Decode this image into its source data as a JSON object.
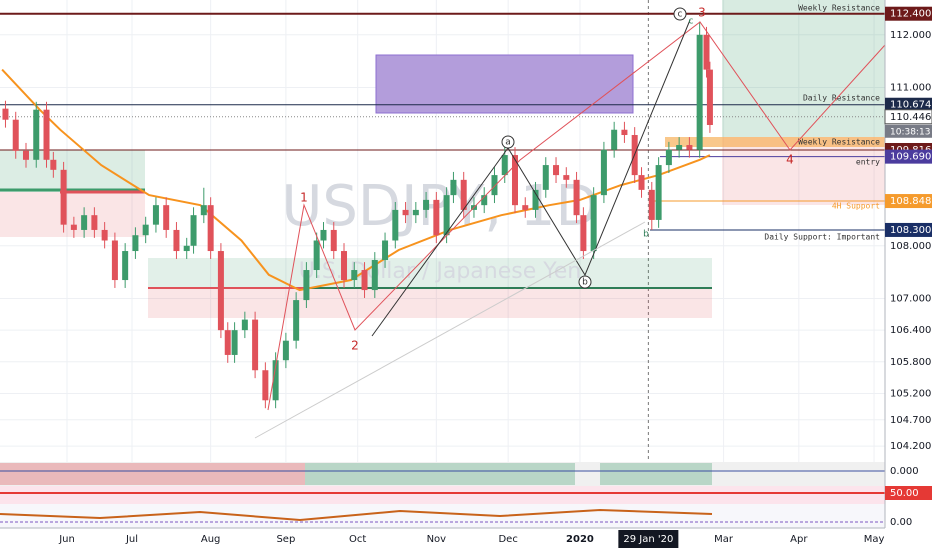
{
  "chart_data": {
    "type": "candlestick",
    "symbol": "USDJPY, 1D",
    "description": "U.S. Dollar / Japanese Yen",
    "x": [
      -18,
      -15,
      -12,
      -9,
      -6,
      -4,
      -1,
      2,
      5,
      8,
      11,
      14,
      17,
      20,
      23,
      26,
      29,
      32,
      35,
      37,
      40,
      42,
      45,
      47,
      49,
      52,
      55,
      58,
      61,
      64,
      67,
      70,
      73,
      75,
      78,
      81,
      84,
      87,
      90,
      93,
      96,
      99,
      102,
      105,
      108,
      111,
      113,
      116,
      119,
      122,
      125,
      128,
      131,
      134,
      137,
      140,
      143,
      146,
      149,
      151,
      154,
      157,
      160,
      163,
      166,
      168,
      171,
      173,
      176,
      179,
      182,
      185,
      187,
      188
    ],
    "open": [
      110.6,
      110.39,
      109.8,
      109.63,
      110.58,
      109.63,
      109.44,
      108.4,
      108.3,
      108.58,
      108.3,
      108.1,
      107.35,
      107.9,
      108.2,
      108.4,
      108.77,
      108.3,
      107.9,
      108.0,
      108.58,
      108.77,
      107.9,
      106.4,
      105.93,
      106.4,
      106.6,
      105.64,
      105.07,
      105.83,
      106.2,
      106.97,
      107.54,
      108.1,
      108.3,
      107.9,
      107.35,
      107.54,
      107.16,
      107.73,
      108.1,
      108.68,
      108.58,
      108.68,
      108.87,
      108.2,
      108.96,
      109.25,
      108.68,
      108.77,
      108.96,
      109.34,
      109.72,
      108.77,
      108.68,
      109.06,
      109.53,
      109.34,
      109.25,
      108.58,
      107.9,
      108.96,
      109.82,
      110.2,
      110.1,
      109.34,
      109.06,
      108.49,
      109.53,
      109.82,
      109.91,
      109.82,
      112.0,
      111.34
    ],
    "high": [
      110.75,
      110.54,
      109.95,
      110.73,
      110.73,
      109.78,
      109.59,
      108.55,
      108.73,
      108.73,
      108.45,
      108.25,
      108.05,
      108.35,
      108.55,
      108.92,
      108.92,
      108.45,
      108.15,
      108.73,
      109.1,
      108.92,
      108.05,
      106.55,
      106.55,
      106.75,
      106.75,
      105.79,
      105.98,
      106.35,
      107.12,
      107.69,
      108.25,
      108.45,
      108.45,
      108.05,
      107.69,
      107.69,
      107.88,
      108.25,
      108.83,
      108.83,
      108.83,
      109.02,
      109.02,
      109.11,
      109.4,
      109.4,
      108.92,
      109.11,
      109.49,
      109.87,
      109.87,
      108.92,
      109.21,
      109.68,
      109.68,
      109.49,
      109.4,
      108.73,
      109.11,
      109.97,
      110.35,
      110.35,
      110.25,
      109.49,
      109.21,
      109.68,
      109.97,
      110.06,
      110.06,
      112.25,
      112.15,
      111.49
    ],
    "low": [
      110.24,
      109.65,
      109.48,
      109.48,
      109.48,
      109.29,
      108.25,
      108.15,
      108.15,
      108.15,
      107.95,
      107.2,
      107.2,
      107.75,
      108.05,
      108.25,
      108.15,
      107.75,
      107.75,
      107.85,
      108.43,
      107.75,
      106.25,
      105.78,
      105.78,
      106.25,
      105.49,
      104.92,
      104.92,
      105.68,
      106.05,
      106.82,
      107.39,
      107.95,
      107.75,
      107.2,
      107.2,
      107.01,
      107.01,
      107.58,
      107.95,
      108.43,
      108.43,
      108.53,
      108.05,
      108.05,
      108.81,
      108.53,
      108.53,
      108.62,
      108.81,
      109.19,
      108.62,
      108.53,
      108.53,
      108.91,
      109.19,
      109.1,
      108.43,
      107.75,
      107.75,
      108.81,
      109.67,
      109.95,
      109.19,
      108.91,
      108.3,
      108.34,
      109.38,
      109.67,
      109.67,
      109.67,
      111.19,
      110.14
    ],
    "close": [
      110.39,
      109.8,
      109.63,
      110.58,
      109.63,
      109.44,
      108.4,
      108.3,
      108.58,
      108.3,
      108.1,
      107.35,
      107.9,
      108.2,
      108.4,
      108.77,
      108.3,
      107.9,
      108.0,
      108.58,
      108.77,
      107.9,
      106.4,
      105.93,
      106.4,
      106.6,
      105.64,
      105.07,
      105.83,
      106.2,
      106.97,
      107.54,
      108.1,
      108.3,
      107.9,
      107.35,
      107.54,
      107.16,
      107.73,
      108.1,
      108.68,
      108.58,
      108.68,
      108.87,
      108.2,
      108.96,
      109.25,
      108.68,
      108.77,
      108.96,
      109.34,
      109.72,
      108.77,
      108.68,
      109.06,
      109.53,
      109.34,
      109.25,
      108.58,
      107.9,
      108.96,
      109.82,
      110.2,
      110.1,
      109.34,
      109.06,
      108.49,
      109.53,
      109.82,
      109.91,
      109.82,
      112.0,
      111.34,
      110.29
    ],
    "up_color": "#3d9b6b",
    "down_color": "#e0525a",
    "xlim": [
      -19.6,
      239.2
    ],
    "ylim": [
      103.9,
      112.66
    ],
    "grid": true,
    "yticks": [
      {
        "value": 112,
        "label": "112.000"
      },
      {
        "value": 111,
        "label": "111.000"
      },
      {
        "value": 108,
        "label": "108.000"
      },
      {
        "value": 107,
        "label": "107.000"
      },
      {
        "value": 106.4,
        "label": "106.400"
      },
      {
        "value": 105.8,
        "label": "105.800"
      },
      {
        "value": 105.2,
        "label": "105.200"
      },
      {
        "value": 104.7,
        "label": "104.700"
      },
      {
        "value": 104.2,
        "label": "104.200"
      }
    ],
    "xticks": [
      {
        "value": 0,
        "label": "Jun"
      },
      {
        "value": 19,
        "label": "Jul"
      },
      {
        "value": 42,
        "label": "Aug"
      },
      {
        "value": 64,
        "label": "Sep"
      },
      {
        "value": 85,
        "label": "Oct"
      },
      {
        "value": 108,
        "label": "Nov"
      },
      {
        "value": 129,
        "label": "Dec"
      },
      {
        "value": 150,
        "label": "2020"
      },
      {
        "value": 192,
        "label": "Mar"
      },
      {
        "value": 214,
        "label": "Apr"
      },
      {
        "value": 236,
        "label": "May"
      }
    ],
    "crosshair": {
      "value": 170,
      "label": "29 Jan '20"
    },
    "overlays": [
      {
        "color": "#f7931e",
        "x": [
          -19,
          -8,
          -2,
          10,
          24,
          39,
          51,
          59,
          68,
          83,
          97,
          112,
          127,
          141,
          150,
          162,
          173,
          185,
          188
        ],
        "values": [
          111.34,
          110.58,
          110.2,
          109.53,
          108.96,
          108.77,
          108.1,
          107.45,
          107.16,
          107.35,
          107.92,
          108.3,
          108.58,
          108.77,
          108.87,
          109.15,
          109.34,
          109.63,
          109.72
        ]
      }
    ],
    "levels": [
      {
        "name": "Weekly Resistance",
        "price": {
          "value": 112.4,
          "label": "112.400"
        },
        "color": "#6d1a1a"
      },
      {
        "name": "Daily Resistance",
        "price": {
          "value": 110.674,
          "label": "110.674"
        },
        "color": "#1c2a4a"
      },
      {
        "name": "Weekly Resistance",
        "price": {
          "value": 109.816,
          "label": "109.816"
        },
        "color": "#6d1a1a"
      },
      {
        "name": "entry",
        "price": {
          "value": 109.69,
          "label": "109.690"
        },
        "color": "#4b3c9e"
      },
      {
        "name": "4H Support",
        "price": {
          "value": 108.848,
          "label": "108.848"
        },
        "color": "#f59b2d"
      },
      {
        "name": "Daily Support: Important",
        "price": {
          "value": 108.3,
          "label": "108.300"
        },
        "color": "#1a2f66"
      }
    ],
    "current_price": {
      "value": 110.446,
      "label": "110.446"
    },
    "countdown": "10:38:13",
    "annotations": [
      "1",
      "2",
      "3",
      "4",
      "a",
      "b",
      "c",
      "c",
      "b"
    ],
    "panels": [
      {
        "tick": {
          "value": 0,
          "label": "0.000"
        }
      },
      {
        "tick": {
          "value": 50,
          "label": "50.00"
        }
      },
      {
        "tick": {
          "value": 0,
          "label": "0.00"
        }
      }
    ]
  }
}
